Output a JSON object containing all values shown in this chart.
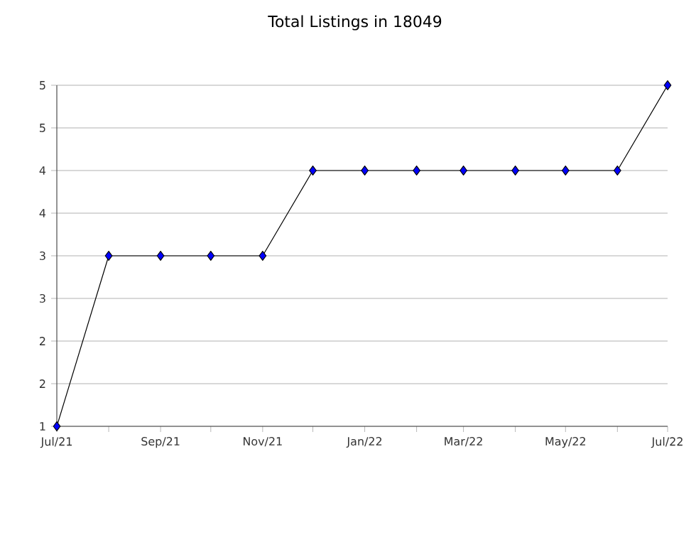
{
  "chart_data": {
    "type": "line",
    "title": "Total Listings in 18049",
    "x": [
      "2021-07",
      "2021-08",
      "2021-09",
      "2021-10",
      "2021-11",
      "2021-12",
      "2022-01",
      "2022-02",
      "2022-03",
      "2022-04",
      "2022-05",
      "2022-06",
      "2022-07"
    ],
    "series": [
      {
        "color": "#0000ff",
        "values": [
          1,
          3,
          3,
          3,
          3,
          4,
          4,
          4,
          4,
          4,
          4,
          4,
          5
        ]
      }
    ],
    "marker": "diamond",
    "line_style": "solid",
    "grid": "y",
    "xlim": [
      "2021-07",
      "2022-07"
    ],
    "xticks": [
      {
        "value": "2021-07",
        "label": "Jul/21"
      },
      {
        "value": "2021-08",
        "label": null
      },
      {
        "value": "2021-09",
        "label": "Sep/21"
      },
      {
        "value": "2021-10",
        "label": null
      },
      {
        "value": "2021-11",
        "label": "Nov/21"
      },
      {
        "value": "2021-12",
        "label": null
      },
      {
        "value": "2022-01",
        "label": "Jan/22"
      },
      {
        "value": "2022-02",
        "label": null
      },
      {
        "value": "2022-03",
        "label": "Mar/22"
      },
      {
        "value": "2022-04",
        "label": null
      },
      {
        "value": "2022-05",
        "label": "May/22"
      },
      {
        "value": "2022-06",
        "label": null
      },
      {
        "value": "2022-07",
        "label": "Jul/22"
      }
    ],
    "ylim": [
      1,
      5
    ],
    "yticks": [
      1,
      {
        "value": 1.5,
        "label": "2"
      },
      2,
      {
        "value": 2.5,
        "label": "3"
      },
      3,
      {
        "value": 3.5,
        "label": "4"
      },
      4,
      {
        "value": 4.5,
        "label": "5"
      },
      5
    ]
  }
}
